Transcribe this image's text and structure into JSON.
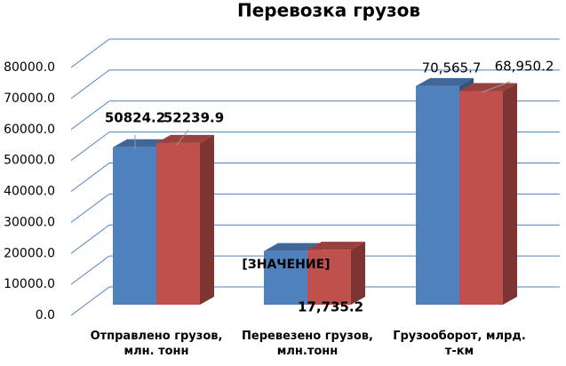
{
  "chart_data": {
    "type": "bar3d",
    "title": "Перевозка грузов",
    "categories": [
      "Отправлено грузов, млн. тонн",
      "Перевезено грузов, млн.тонн",
      "Грузооборот, млрд. т-км"
    ],
    "series": [
      {
        "color": "#4f81bd",
        "values": [
          50824.2,
          17300,
          70565.7
        ],
        "value_labels": [
          "50824.2",
          null,
          "70,565.7"
        ]
      },
      {
        "color": "#c0504d",
        "values": [
          52239.9,
          17735.2,
          68950.2
        ],
        "value_labels": [
          "52239.9",
          "17,735.2",
          "68,950.2"
        ]
      }
    ],
    "annotation": "[ЗНАЧЕНИЕ]",
    "ylim": [
      0,
      80000
    ],
    "yticks": [
      {
        "value": 0,
        "label": "0.0"
      },
      {
        "value": 10000,
        "label": "10000.0"
      },
      {
        "value": 20000,
        "label": "20000.0"
      },
      {
        "value": 30000,
        "label": "30000.0"
      },
      {
        "value": 40000,
        "label": "40000.0"
      },
      {
        "value": 50000,
        "label": "50000.0"
      },
      {
        "value": 60000,
        "label": "60000.0"
      },
      {
        "value": 70000,
        "label": "70000.0"
      },
      {
        "value": 80000,
        "label": "80000.0"
      }
    ],
    "grid": true,
    "grid_color": "#4f81bd"
  }
}
